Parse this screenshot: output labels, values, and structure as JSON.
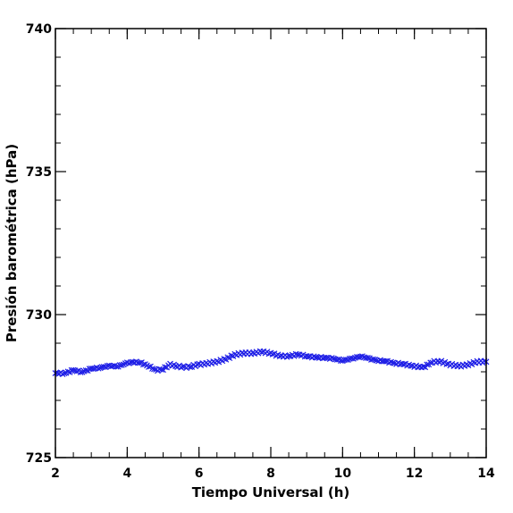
{
  "chart_data": {
    "type": "scatter",
    "title": "",
    "xlabel": "Tiempo Universal (h)",
    "ylabel": "Presión barométrica (hPa)",
    "xlim": [
      2,
      14
    ],
    "ylim": [
      725,
      740
    ],
    "x_ticks": [
      2,
      4,
      6,
      8,
      10,
      12,
      14
    ],
    "x_tick_labels": [
      "2",
      "4",
      "6",
      "8",
      "10",
      "12",
      "14"
    ],
    "y_ticks": [
      725,
      730,
      735,
      740
    ],
    "y_tick_labels": [
      "725",
      "730",
      "735",
      "740"
    ],
    "x_minor_step": 0.5,
    "y_minor_step": 1,
    "marker": "cross",
    "grid": false,
    "legend": "none",
    "series_color": "#1f1fe6",
    "series": [
      {
        "x": [
          2.0,
          2.25,
          2.5,
          2.75,
          3.0,
          3.25,
          3.5,
          3.75,
          4.0,
          4.2,
          4.4,
          4.6,
          4.8,
          5.0,
          5.2,
          5.4,
          5.6,
          5.8,
          6.0,
          6.25,
          6.5,
          6.75,
          7.0,
          7.25,
          7.5,
          7.75,
          8.0,
          8.25,
          8.5,
          8.75,
          9.0,
          9.25,
          9.5,
          9.75,
          10.0,
          10.25,
          10.5,
          10.75,
          11.0,
          11.25,
          11.5,
          11.75,
          12.0,
          12.25,
          12.5,
          12.75,
          13.0,
          13.25,
          13.5,
          13.75,
          14.0
        ],
        "y": [
          727.95,
          727.95,
          728.05,
          728.0,
          728.1,
          728.15,
          728.2,
          728.2,
          728.3,
          728.35,
          728.3,
          728.2,
          728.05,
          728.1,
          728.25,
          728.2,
          728.15,
          728.2,
          728.25,
          728.3,
          728.35,
          728.45,
          728.6,
          728.65,
          728.65,
          728.7,
          728.65,
          728.55,
          728.55,
          728.6,
          728.55,
          728.5,
          728.5,
          728.45,
          728.4,
          728.45,
          728.55,
          728.45,
          728.4,
          728.35,
          728.3,
          728.25,
          728.2,
          728.15,
          728.35,
          728.35,
          728.25,
          728.2,
          728.25,
          728.35,
          728.35
        ]
      }
    ]
  }
}
